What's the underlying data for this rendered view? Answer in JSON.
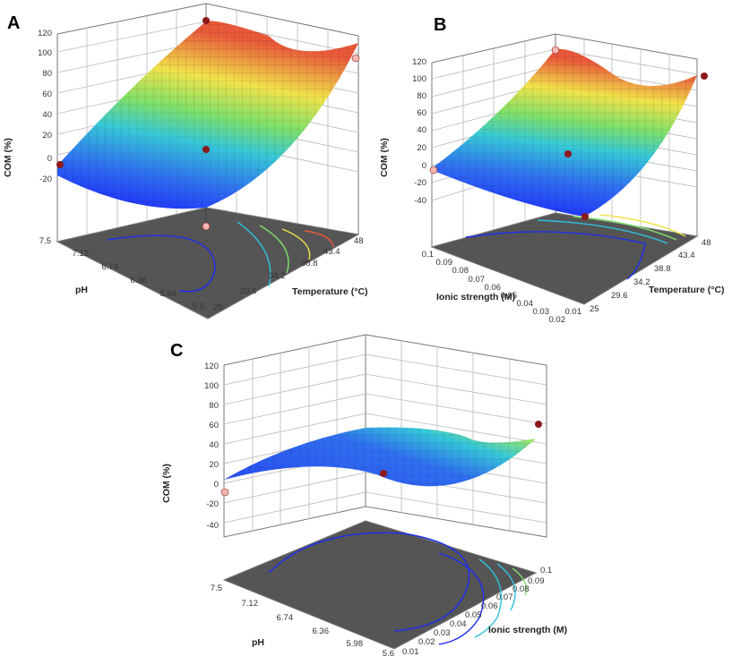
{
  "panel_letters": [
    "A",
    "B",
    "C"
  ],
  "colors": {
    "floor": "#555555",
    "surface_low": "#1a1aff",
    "surface_high": "#e8593a",
    "point_dark": "#8b1a1a",
    "point_light": "#f2b8b0"
  },
  "chart_data": [
    {
      "type": "surface3d",
      "panel": "A",
      "zlabel": "COM (%)",
      "zticks": [
        "120",
        "100",
        "80",
        "60",
        "40",
        "20",
        "0",
        "-20"
      ],
      "xlabel": "pH",
      "xticks": [
        "7.5",
        "7.12",
        "6.74",
        "6.36",
        "5.98",
        "5.6"
      ],
      "ylabel": "Temperature (°C)",
      "yticks": [
        "25",
        "29.6",
        "34.2",
        "38.8",
        "43.4",
        "48"
      ],
      "zlim": [
        -20,
        120
      ]
    },
    {
      "type": "surface3d",
      "panel": "B",
      "zlabel": "COM (%)",
      "zticks": [
        "120",
        "100",
        "80",
        "60",
        "40",
        "20",
        "0",
        "-20",
        "-40"
      ],
      "xlabel": "Ionic strength (M)",
      "xticks": [
        "0.1",
        "0.09",
        "0.08",
        "0.07",
        "0.06",
        "0.05",
        "0.04",
        "0.03",
        "0.02",
        "0.01"
      ],
      "ylabel": "Temperature (°C)",
      "yticks": [
        "25",
        "29.6",
        "34.2",
        "38.8",
        "43.4",
        "48"
      ],
      "zlim": [
        -40,
        120
      ]
    },
    {
      "type": "surface3d",
      "panel": "C",
      "zlabel": "COM (%)",
      "zticks": [
        "120",
        "100",
        "80",
        "60",
        "40",
        "20",
        "0",
        "-20",
        "-40"
      ],
      "xlabel": "pH",
      "xticks": [
        "7.5",
        "7.12",
        "6.74",
        "6.36",
        "5.98",
        "5.6"
      ],
      "ylabel": "Ionic strength (M)",
      "yticks": [
        "0.01",
        "0.02",
        "0.03",
        "0.04",
        "0.05",
        "0.06",
        "0.07",
        "0.08",
        "0.09",
        "0.1"
      ],
      "zlim": [
        -40,
        120
      ]
    }
  ]
}
